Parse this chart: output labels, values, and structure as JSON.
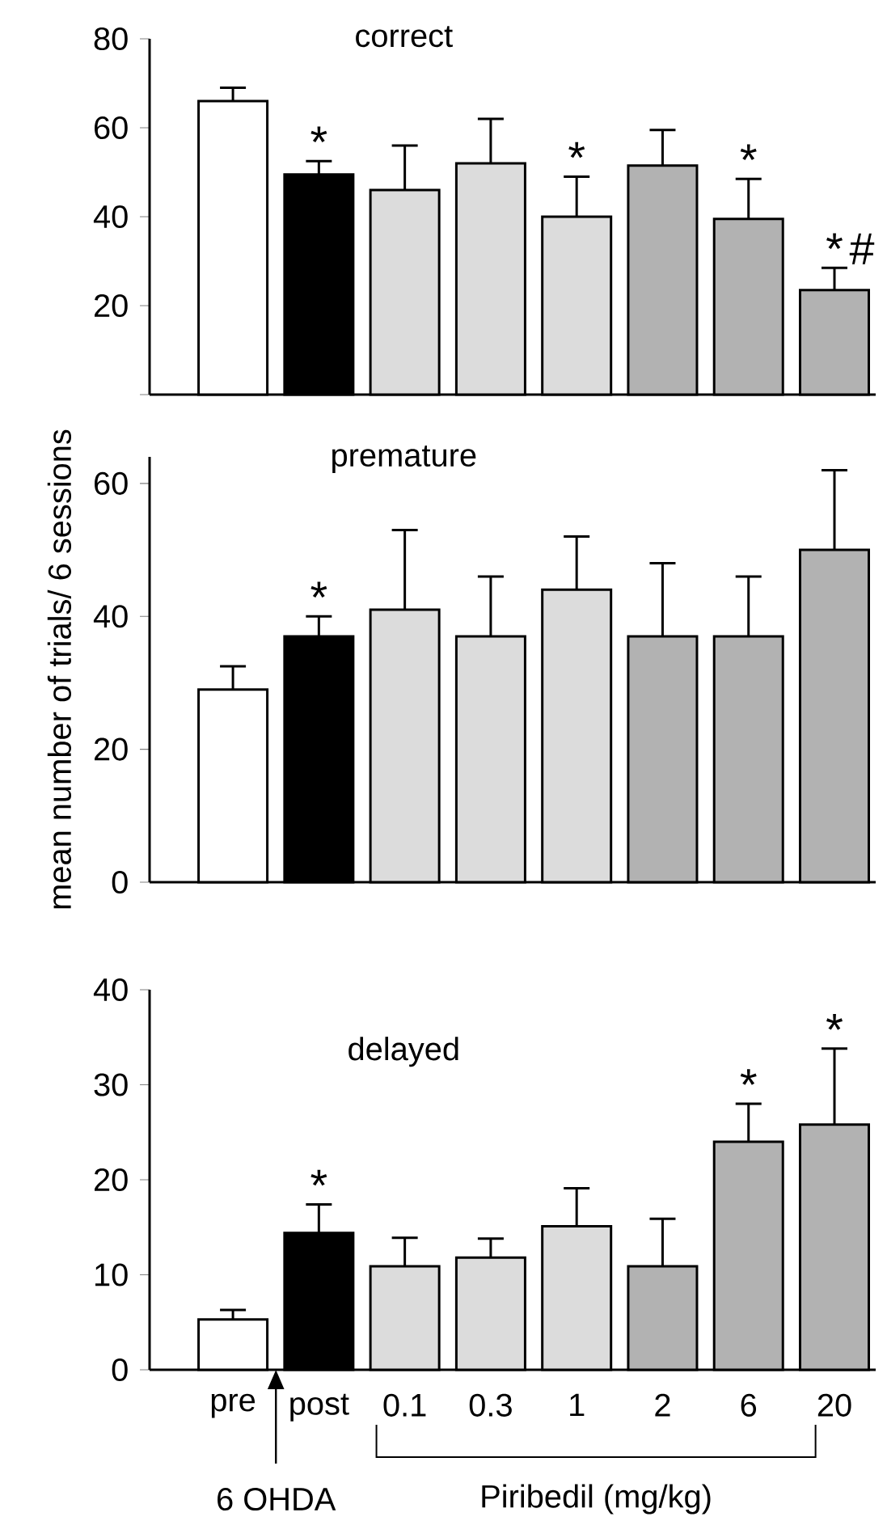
{
  "chart_data": [
    {
      "type": "bar",
      "title": "correct",
      "categories": [
        "pre",
        "post",
        "0.1",
        "0.3",
        "1",
        "2",
        "6",
        "20"
      ],
      "values": [
        66,
        49.5,
        46,
        52,
        40,
        51.5,
        39.5,
        23.5
      ],
      "errors": [
        3,
        3,
        10,
        10,
        9,
        8,
        9,
        5
      ],
      "colors": [
        "#ffffff",
        "#000000",
        "#dcdcdc",
        "#dcdcdc",
        "#dcdcdc",
        "#b2b2b2",
        "#b2b2b2",
        "#b2b2b2"
      ],
      "ylim": [
        0,
        80
      ],
      "yticks": [
        {
          "value": 0,
          "label": null
        },
        20,
        40,
        60,
        80
      ],
      "tick_labels": "y",
      "annotations": [
        {
          "text": "*",
          "x": "post",
          "y": 49.5
        },
        {
          "text": "*",
          "x": "1",
          "y": 40
        },
        {
          "text": "*",
          "x": "6",
          "y": 39.5
        },
        {
          "text": "*",
          "x": "20",
          "y": 23.5
        },
        {
          "text": "#",
          "x": "20",
          "y": 23.5
        }
      ]
    },
    {
      "type": "bar",
      "title": "premature",
      "ylabel": "mean number of trials/ 6  sessions",
      "categories": [
        "pre",
        "post",
        "0.1",
        "0.3",
        "1",
        "2",
        "6",
        "20"
      ],
      "values": [
        29,
        37,
        41,
        37,
        44,
        37,
        37,
        50
      ],
      "errors": [
        3.5,
        3,
        12,
        9,
        8,
        11,
        9,
        12
      ],
      "colors": [
        "#ffffff",
        "#000000",
        "#dcdcdc",
        "#dcdcdc",
        "#dcdcdc",
        "#b2b2b2",
        "#b2b2b2",
        "#b2b2b2"
      ],
      "ylim": [
        0,
        64
      ],
      "yticks": [
        0,
        20,
        40,
        60
      ],
      "tick_labels": "y",
      "annotations": [
        {
          "text": "*",
          "x": "post",
          "y": 37
        }
      ]
    },
    {
      "type": "bar",
      "title": "delayed",
      "categories": [
        "pre",
        "post",
        "0.1",
        "0.3",
        "1",
        "2",
        "6",
        "20"
      ],
      "values": [
        5.3,
        14.4,
        10.9,
        11.8,
        15.1,
        10.9,
        24,
        25.8
      ],
      "errors": [
        1,
        3,
        3,
        2,
        4,
        5,
        4,
        8
      ],
      "colors": [
        "#ffffff",
        "#000000",
        "#dcdcdc",
        "#dcdcdc",
        "#dcdcdc",
        "#b2b2b2",
        "#b2b2b2",
        "#b2b2b2"
      ],
      "ylim": [
        0,
        40
      ],
      "yticks": [
        0,
        10,
        20,
        30,
        40
      ],
      "annotations": [
        {
          "text": "*",
          "x": "post",
          "y": 14.4
        },
        {
          "text": "*",
          "x": "6",
          "y": 24
        },
        {
          "text": "*",
          "x": "20",
          "y": 25.8
        },
        "6 OHDA",
        "Piribedil (mg/kg)"
      ]
    }
  ]
}
